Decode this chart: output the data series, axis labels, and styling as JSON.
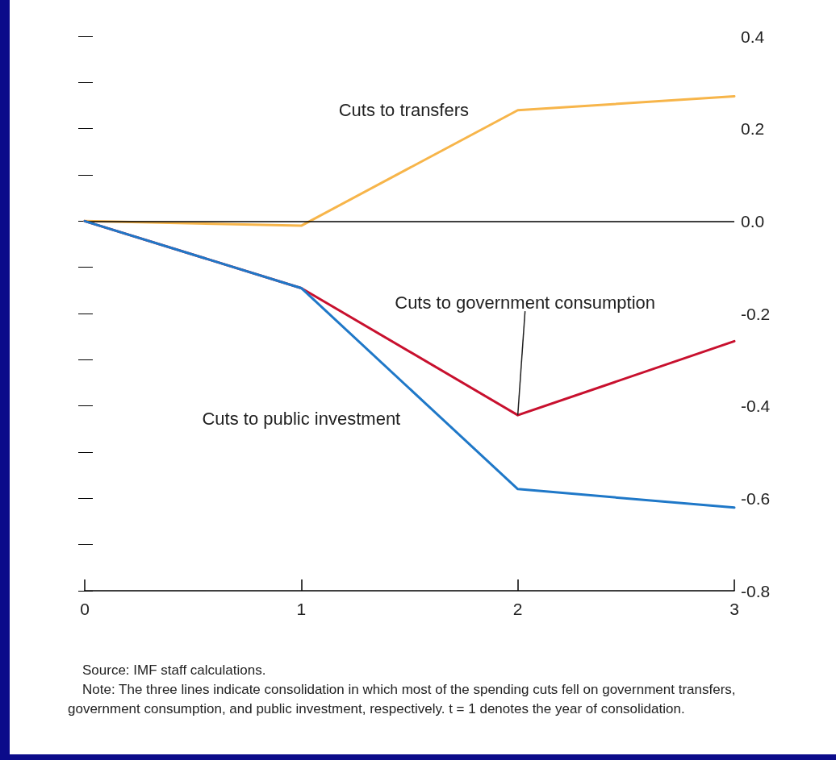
{
  "chart_data": {
    "type": "line",
    "x": [
      0,
      1,
      2,
      3
    ],
    "series": [
      {
        "name": "Cuts to transfers",
        "color": "#f7b54a",
        "values": [
          0,
          -0.01,
          0.24,
          0.27
        ]
      },
      {
        "name": "Cuts to government consumption",
        "color": "#c8102e",
        "values": [
          0,
          -0.145,
          -0.42,
          -0.26
        ]
      },
      {
        "name": "Cuts to public investment",
        "color": "#1f78c8",
        "values": [
          0,
          -0.145,
          -0.58,
          -0.62
        ]
      }
    ],
    "xlim": [
      0,
      3
    ],
    "xticks": [
      0,
      1,
      2,
      3
    ],
    "ylim": [
      -0.8,
      0.4
    ],
    "yticks": [
      {
        "value": -0.8,
        "label": "-0.8"
      },
      {
        "value": -0.7,
        "label": null
      },
      {
        "value": -0.6,
        "label": "-0.6"
      },
      {
        "value": -0.5,
        "label": null
      },
      {
        "value": -0.4,
        "label": "-0.4"
      },
      {
        "value": -0.3,
        "label": null
      },
      {
        "value": -0.2,
        "label": "-0.2"
      },
      {
        "value": -0.1,
        "label": null
      },
      {
        "value": 0,
        "label": "0.0"
      },
      {
        "value": 0.1,
        "label": null
      },
      {
        "value": 0.2,
        "label": "0.2"
      },
      {
        "value": 0.3,
        "label": null
      },
      {
        "value": 0.4,
        "label": "0.4"
      }
    ],
    "ref_lines": [
      {
        "axis": "y",
        "value": 0,
        "color": "#000000"
      }
    ],
    "grid": false,
    "legend": false,
    "marker": "none",
    "line_style": "solid",
    "annotations": [
      "Source: IMF staff calculations.",
      "Note: The three lines indicate consolidation in which most of the spending cuts fell on government transfers, government consumption, and public investment, respectively. t = 1 denotes the year of consolidation."
    ]
  }
}
